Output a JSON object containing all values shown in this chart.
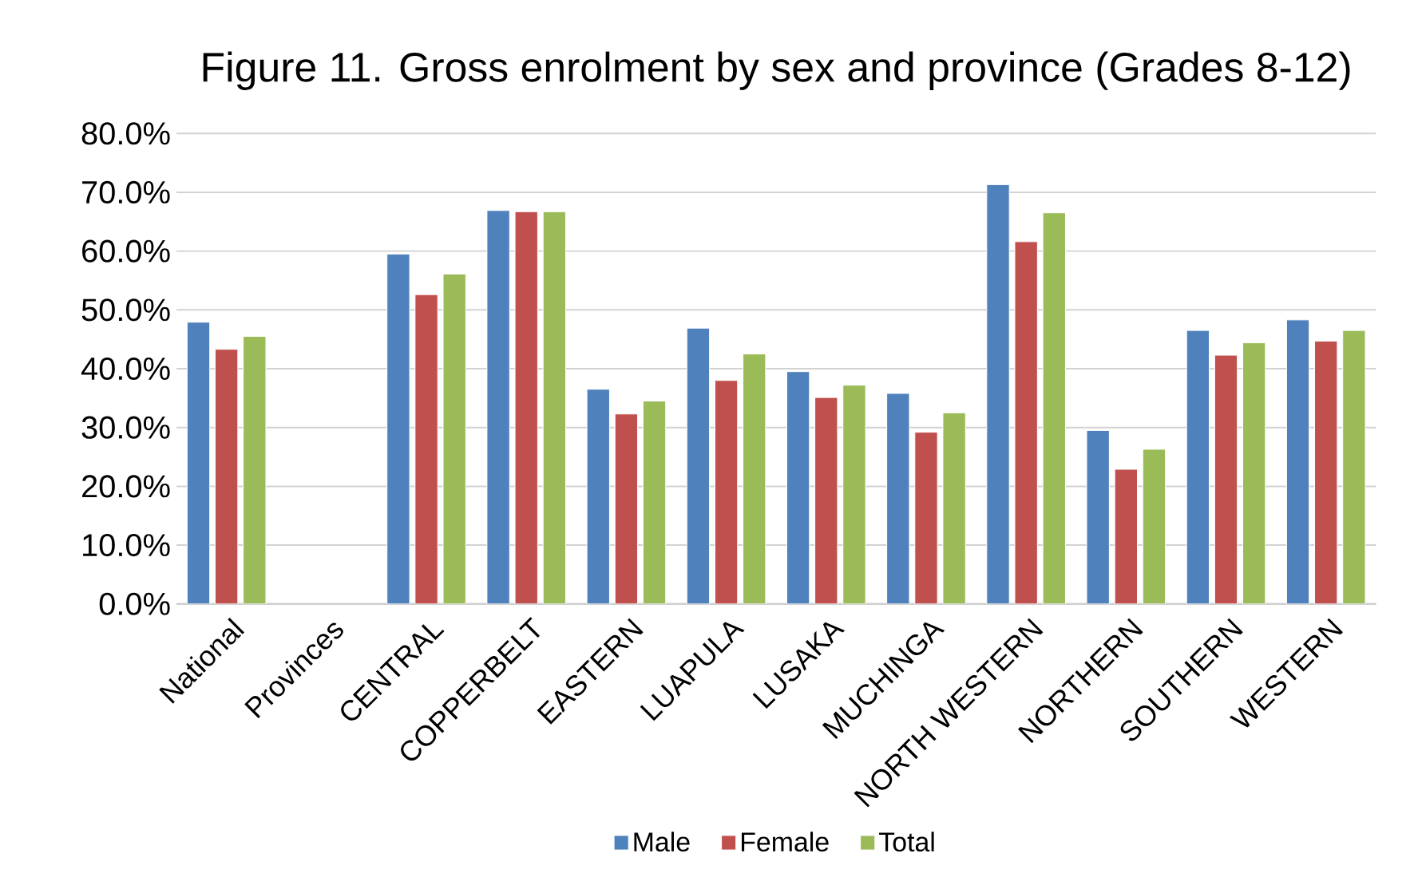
{
  "chart_data": {
    "type": "bar",
    "title": "Figure 11. Gross enrolment by sex and province (Grades 8-12)",
    "categories": [
      "National",
      "Provinces",
      "CENTRAL",
      "COPPERBELT",
      "EASTERN",
      "LUAPULA",
      "LUSAKA",
      "MUCHINGA",
      "NORTH WESTERN",
      "NORTHERN",
      "SOUTHERN",
      "WESTERN"
    ],
    "series": [
      {
        "name": "Male",
        "color": "#4f81bd",
        "values": [
          47.9,
          null,
          59.5,
          66.9,
          36.5,
          46.9,
          39.5,
          35.8,
          71.3,
          29.5,
          46.5,
          48.3
        ]
      },
      {
        "name": "Female",
        "color": "#c0504d",
        "values": [
          43.3,
          null,
          52.6,
          66.7,
          32.3,
          38.0,
          35.1,
          29.2,
          61.6,
          22.9,
          42.3,
          44.7
        ]
      },
      {
        "name": "Total",
        "color": "#9bbb59",
        "values": [
          45.5,
          null,
          56.1,
          66.7,
          34.5,
          42.5,
          37.2,
          32.5,
          66.5,
          26.3,
          44.4,
          46.5
        ]
      }
    ],
    "ylim": [
      0,
      80
    ],
    "yticks": [
      {
        "value": 0,
        "label": "0.0%"
      },
      {
        "value": 10,
        "label": "10.0%"
      },
      {
        "value": 20,
        "label": "20.0%"
      },
      {
        "value": 30,
        "label": "30.0%"
      },
      {
        "value": 40,
        "label": "40.0%"
      },
      {
        "value": 50,
        "label": "50.0%"
      },
      {
        "value": 60,
        "label": "60.0%"
      },
      {
        "value": 70,
        "label": "70.0%"
      },
      {
        "value": 80,
        "label": "80.0%"
      }
    ],
    "grid": "y",
    "legend": "bottom"
  }
}
